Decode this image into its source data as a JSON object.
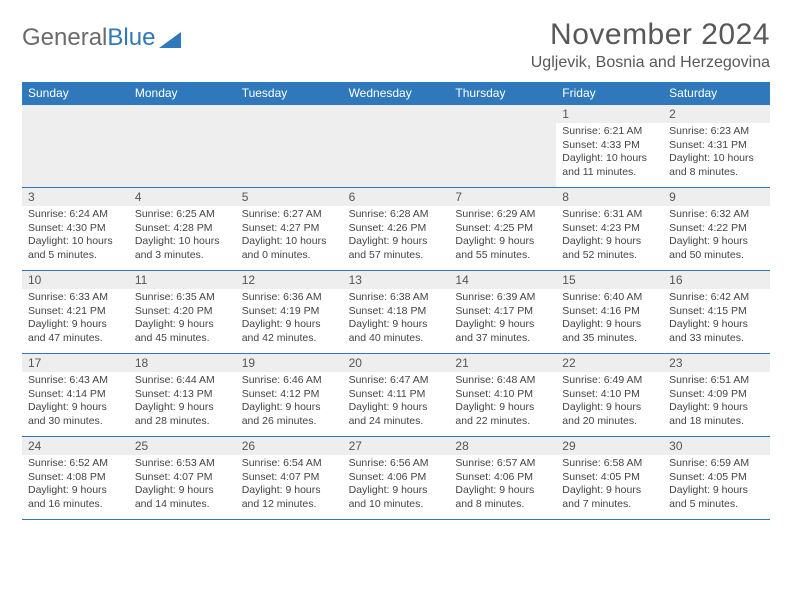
{
  "logo": {
    "text1": "General",
    "text2": "Blue"
  },
  "title": "November 2024",
  "location": "Ugljevik, Bosnia and Herzegovina",
  "colors": {
    "header_bg": "#2f78bb",
    "header_text": "#ffffff",
    "daynum_bg": "#eeeeee",
    "border": "#2f78bb",
    "text": "#444444",
    "title_text": "#585858"
  },
  "day_names": [
    "Sunday",
    "Monday",
    "Tuesday",
    "Wednesday",
    "Thursday",
    "Friday",
    "Saturday"
  ],
  "weeks": [
    [
      null,
      null,
      null,
      null,
      null,
      {
        "n": "1",
        "sr": "Sunrise: 6:21 AM",
        "ss": "Sunset: 4:33 PM",
        "dl": "Daylight: 10 hours and 11 minutes."
      },
      {
        "n": "2",
        "sr": "Sunrise: 6:23 AM",
        "ss": "Sunset: 4:31 PM",
        "dl": "Daylight: 10 hours and 8 minutes."
      }
    ],
    [
      {
        "n": "3",
        "sr": "Sunrise: 6:24 AM",
        "ss": "Sunset: 4:30 PM",
        "dl": "Daylight: 10 hours and 5 minutes."
      },
      {
        "n": "4",
        "sr": "Sunrise: 6:25 AM",
        "ss": "Sunset: 4:28 PM",
        "dl": "Daylight: 10 hours and 3 minutes."
      },
      {
        "n": "5",
        "sr": "Sunrise: 6:27 AM",
        "ss": "Sunset: 4:27 PM",
        "dl": "Daylight: 10 hours and 0 minutes."
      },
      {
        "n": "6",
        "sr": "Sunrise: 6:28 AM",
        "ss": "Sunset: 4:26 PM",
        "dl": "Daylight: 9 hours and 57 minutes."
      },
      {
        "n": "7",
        "sr": "Sunrise: 6:29 AM",
        "ss": "Sunset: 4:25 PM",
        "dl": "Daylight: 9 hours and 55 minutes."
      },
      {
        "n": "8",
        "sr": "Sunrise: 6:31 AM",
        "ss": "Sunset: 4:23 PM",
        "dl": "Daylight: 9 hours and 52 minutes."
      },
      {
        "n": "9",
        "sr": "Sunrise: 6:32 AM",
        "ss": "Sunset: 4:22 PM",
        "dl": "Daylight: 9 hours and 50 minutes."
      }
    ],
    [
      {
        "n": "10",
        "sr": "Sunrise: 6:33 AM",
        "ss": "Sunset: 4:21 PM",
        "dl": "Daylight: 9 hours and 47 minutes."
      },
      {
        "n": "11",
        "sr": "Sunrise: 6:35 AM",
        "ss": "Sunset: 4:20 PM",
        "dl": "Daylight: 9 hours and 45 minutes."
      },
      {
        "n": "12",
        "sr": "Sunrise: 6:36 AM",
        "ss": "Sunset: 4:19 PM",
        "dl": "Daylight: 9 hours and 42 minutes."
      },
      {
        "n": "13",
        "sr": "Sunrise: 6:38 AM",
        "ss": "Sunset: 4:18 PM",
        "dl": "Daylight: 9 hours and 40 minutes."
      },
      {
        "n": "14",
        "sr": "Sunrise: 6:39 AM",
        "ss": "Sunset: 4:17 PM",
        "dl": "Daylight: 9 hours and 37 minutes."
      },
      {
        "n": "15",
        "sr": "Sunrise: 6:40 AM",
        "ss": "Sunset: 4:16 PM",
        "dl": "Daylight: 9 hours and 35 minutes."
      },
      {
        "n": "16",
        "sr": "Sunrise: 6:42 AM",
        "ss": "Sunset: 4:15 PM",
        "dl": "Daylight: 9 hours and 33 minutes."
      }
    ],
    [
      {
        "n": "17",
        "sr": "Sunrise: 6:43 AM",
        "ss": "Sunset: 4:14 PM",
        "dl": "Daylight: 9 hours and 30 minutes."
      },
      {
        "n": "18",
        "sr": "Sunrise: 6:44 AM",
        "ss": "Sunset: 4:13 PM",
        "dl": "Daylight: 9 hours and 28 minutes."
      },
      {
        "n": "19",
        "sr": "Sunrise: 6:46 AM",
        "ss": "Sunset: 4:12 PM",
        "dl": "Daylight: 9 hours and 26 minutes."
      },
      {
        "n": "20",
        "sr": "Sunrise: 6:47 AM",
        "ss": "Sunset: 4:11 PM",
        "dl": "Daylight: 9 hours and 24 minutes."
      },
      {
        "n": "21",
        "sr": "Sunrise: 6:48 AM",
        "ss": "Sunset: 4:10 PM",
        "dl": "Daylight: 9 hours and 22 minutes."
      },
      {
        "n": "22",
        "sr": "Sunrise: 6:49 AM",
        "ss": "Sunset: 4:10 PM",
        "dl": "Daylight: 9 hours and 20 minutes."
      },
      {
        "n": "23",
        "sr": "Sunrise: 6:51 AM",
        "ss": "Sunset: 4:09 PM",
        "dl": "Daylight: 9 hours and 18 minutes."
      }
    ],
    [
      {
        "n": "24",
        "sr": "Sunrise: 6:52 AM",
        "ss": "Sunset: 4:08 PM",
        "dl": "Daylight: 9 hours and 16 minutes."
      },
      {
        "n": "25",
        "sr": "Sunrise: 6:53 AM",
        "ss": "Sunset: 4:07 PM",
        "dl": "Daylight: 9 hours and 14 minutes."
      },
      {
        "n": "26",
        "sr": "Sunrise: 6:54 AM",
        "ss": "Sunset: 4:07 PM",
        "dl": "Daylight: 9 hours and 12 minutes."
      },
      {
        "n": "27",
        "sr": "Sunrise: 6:56 AM",
        "ss": "Sunset: 4:06 PM",
        "dl": "Daylight: 9 hours and 10 minutes."
      },
      {
        "n": "28",
        "sr": "Sunrise: 6:57 AM",
        "ss": "Sunset: 4:06 PM",
        "dl": "Daylight: 9 hours and 8 minutes."
      },
      {
        "n": "29",
        "sr": "Sunrise: 6:58 AM",
        "ss": "Sunset: 4:05 PM",
        "dl": "Daylight: 9 hours and 7 minutes."
      },
      {
        "n": "30",
        "sr": "Sunrise: 6:59 AM",
        "ss": "Sunset: 4:05 PM",
        "dl": "Daylight: 9 hours and 5 minutes."
      }
    ]
  ]
}
